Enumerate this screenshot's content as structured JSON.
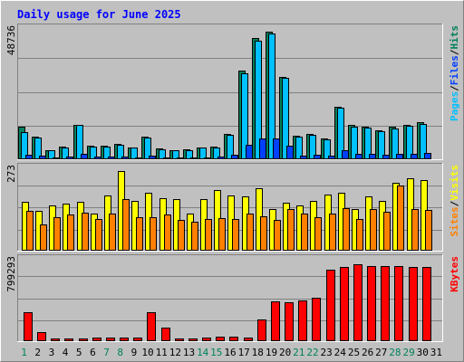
{
  "chart_data": {
    "type": "bar",
    "title": "Daily usage for June 2025",
    "categories": [
      "1",
      "2",
      "3",
      "4",
      "5",
      "6",
      "7",
      "8",
      "9",
      "10",
      "11",
      "12",
      "13",
      "14",
      "15",
      "16",
      "17",
      "18",
      "19",
      "20",
      "21",
      "22",
      "23",
      "24",
      "25",
      "26",
      "27",
      "28",
      "29",
      "30",
      "31"
    ],
    "weekend_days": [
      "1",
      "7",
      "8",
      "14",
      "15",
      "21",
      "22",
      "28",
      "29"
    ],
    "panels": [
      {
        "name": "hits-files-pages",
        "max_label": "48736",
        "ylim": [
          0,
          48736
        ],
        "legend": [
          "Pages",
          "/",
          "Files",
          "/",
          "Hits"
        ],
        "series": [
          {
            "name": "Hits",
            "color": "#00805c",
            "values": [
              12500,
              8800,
              3500,
              4900,
              13300,
              5300,
              5100,
              6000,
              4600,
              8600,
              4000,
              3500,
              3800,
              4600,
              4900,
              9700,
              33800,
              46300,
              48736,
              31500,
              9000,
              9700,
              7900,
              20200,
              13000,
              12500,
              10900,
              12300,
              13300,
              14000,
              0
            ]
          },
          {
            "name": "Files",
            "color": "#00c0ff",
            "values": [
              10200,
              8300,
              3400,
              4600,
              13000,
              5000,
              4900,
              5600,
              4400,
              8200,
              3800,
              3300,
              3600,
              4400,
              4600,
              9400,
              33000,
              45400,
              48000,
              31000,
              8800,
              9400,
              7500,
              19600,
              12600,
              12100,
              10600,
              11800,
              12800,
              13500,
              0
            ]
          },
          {
            "name": "Pages",
            "color": "#0040ff",
            "values": [
              1800,
              1400,
              600,
              900,
              2000,
              1000,
              900,
              1100,
              800,
              1500,
              700,
              600,
              700,
              800,
              900,
              1700,
              5500,
              7900,
              8000,
              5100,
              1500,
              1600,
              1300,
              3300,
              2200,
              2100,
              1800,
              2000,
              2200,
              2300,
              0
            ]
          }
        ]
      },
      {
        "name": "visits-sites",
        "max_label": "273",
        "ylim": [
          0,
          273
        ],
        "legend": [
          "Sites",
          "/",
          "Visits"
        ],
        "series": [
          {
            "name": "Visits",
            "color": "#ffff00",
            "values": [
              166,
              137,
              155,
              160,
              169,
              127,
              190,
              273,
              171,
              200,
              181,
              178,
              127,
              178,
              209,
              190,
              185,
              215,
              143,
              165,
              155,
              171,
              193,
              199,
              142,
              186,
              172,
              232,
              247,
              241,
              0
            ]
          },
          {
            "name": "Sites",
            "color": "#ff8000",
            "values": [
              138,
              91,
              115,
              124,
              130,
              108,
              126,
              178,
              115,
              115,
              124,
              107,
              99,
              110,
              112,
              108,
              128,
              118,
              104,
              144,
              128,
              116,
              127,
              147,
              109,
              143,
              132,
              222,
              143,
              139,
              0
            ]
          }
        ]
      },
      {
        "name": "kbytes",
        "max_label": "799293",
        "ylim": [
          0,
          799293
        ],
        "legend": [
          "KBytes"
        ],
        "series": [
          {
            "name": "KBytes",
            "color": "#ff0000",
            "values": [
              290000,
              95000,
              30000,
              30000,
              30000,
              35000,
              35000,
              35000,
              35000,
              295000,
              135000,
              30000,
              30000,
              40000,
              45000,
              45000,
              40000,
              225000,
              405000,
              395000,
              410000,
              440000,
              730000,
              755000,
              780000,
              765000,
              765000,
              765000,
              755000,
              750000,
              0
            ]
          }
        ]
      }
    ]
  }
}
